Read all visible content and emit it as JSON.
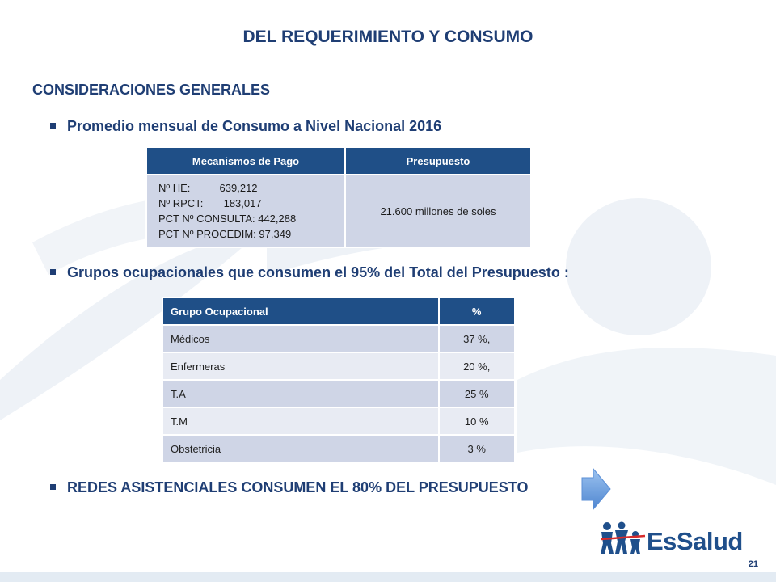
{
  "slide": {
    "title": "DEL REQUERIMIENTO Y CONSUMO",
    "heading": "CONSIDERACIONES GENERALES",
    "bullets": [
      "Promedio mensual de Consumo a Nivel Nacional  2016",
      "Grupos ocupacionales que consumen el 95% del Total del Presupuesto :",
      "REDES ASISTENCIALES CONSUMEN EL 80% DEL PRESUPUESTO"
    ],
    "page_number": "21"
  },
  "table1": {
    "headers": [
      "Mecanismos de Pago",
      "Presupuesto"
    ],
    "mecanismos": [
      "Nº HE:          639,212",
      "Nº RPCT:       183,017",
      "PCT Nº CONSULTA: 442,288",
      "PCT Nº PROCEDIM: 97,349"
    ],
    "presupuesto": "21.600 millones de soles"
  },
  "table2": {
    "headers": [
      "Grupo Ocupacional",
      "%"
    ],
    "rows": [
      [
        "Médicos",
        "37 %,"
      ],
      [
        "Enfermeras",
        "20 %,"
      ],
      [
        "T.A",
        "25 %"
      ],
      [
        "T.M",
        "10 %"
      ],
      [
        "Obstetricia",
        "3 %"
      ]
    ]
  },
  "logo": {
    "text": "EsSalud"
  },
  "colors": {
    "primary": "#1f3e74",
    "header_fill": "#1f4f87",
    "row_dark": "#cfd5e6",
    "row_light": "#e8ebf3",
    "arrow": "#6aa0e0"
  }
}
